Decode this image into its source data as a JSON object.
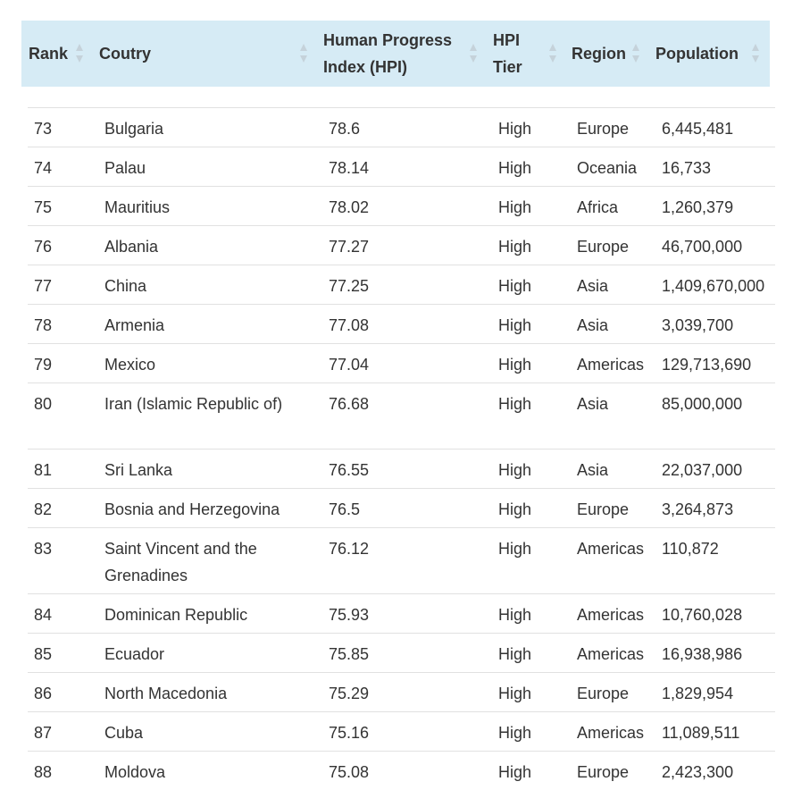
{
  "columns": [
    {
      "key": "rank",
      "label": "Rank"
    },
    {
      "key": "country",
      "label": "Coutry"
    },
    {
      "key": "hpi",
      "label": "Human Progress Index (HPI)"
    },
    {
      "key": "tier",
      "label": "HPI Tier"
    },
    {
      "key": "region",
      "label": "Region"
    },
    {
      "key": "population",
      "label": "Population"
    }
  ],
  "rows": [
    {
      "rank": "73",
      "country": "Bulgaria",
      "hpi": "78.6",
      "tier": "High",
      "region": "Europe",
      "population": "6,445,481"
    },
    {
      "rank": "74",
      "country": "Palau",
      "hpi": "78.14",
      "tier": "High",
      "region": "Oceania",
      "population": "16,733"
    },
    {
      "rank": "75",
      "country": "Mauritius",
      "hpi": "78.02",
      "tier": "High",
      "region": "Africa",
      "population": "1,260,379"
    },
    {
      "rank": "76",
      "country": "Albania",
      "hpi": "77.27",
      "tier": "High",
      "region": "Europe",
      "population": "46,700,000"
    },
    {
      "rank": "77",
      "country": "China",
      "hpi": "77.25",
      "tier": "High",
      "region": "Asia",
      "population": "1,409,670,000"
    },
    {
      "rank": "78",
      "country": "Armenia",
      "hpi": "77.08",
      "tier": "High",
      "region": "Asia",
      "population": "3,039,700"
    },
    {
      "rank": "79",
      "country": "Mexico",
      "hpi": "77.04",
      "tier": "High",
      "region": "Americas",
      "population": "129,713,690"
    },
    {
      "rank": "80",
      "country": "Iran (Islamic Republic of)",
      "hpi": "76.68",
      "tier": "High",
      "region": "Asia",
      "population": "85,000,000"
    },
    {
      "rank": "81",
      "country": "Sri Lanka",
      "hpi": "76.55",
      "tier": "High",
      "region": "Asia",
      "population": "22,037,000"
    },
    {
      "rank": "82",
      "country": "Bosnia and Herzegovina",
      "hpi": "76.5",
      "tier": "High",
      "region": "Europe",
      "population": "3,264,873"
    },
    {
      "rank": "83",
      "country": "Saint Vincent and the Grenadines",
      "hpi": "76.12",
      "tier": "High",
      "region": "Americas",
      "population": "110,872"
    },
    {
      "rank": "84",
      "country": "Dominican Republic",
      "hpi": "75.93",
      "tier": "High",
      "region": "Americas",
      "population": "10,760,028"
    },
    {
      "rank": "85",
      "country": "Ecuador",
      "hpi": "75.85",
      "tier": "High",
      "region": "Americas",
      "population": "16,938,986"
    },
    {
      "rank": "86",
      "country": "North Macedonia",
      "hpi": "75.29",
      "tier": "High",
      "region": "Europe",
      "population": "1,829,954"
    },
    {
      "rank": "87",
      "country": "Cuba",
      "hpi": "75.16",
      "tier": "High",
      "region": "Americas",
      "population": "11,089,511"
    },
    {
      "rank": "88",
      "country": "Moldova",
      "hpi": "75.08",
      "tier": "High",
      "region": "Europe",
      "population": "2,423,300"
    }
  ],
  "colors": {
    "header_bg": "#d6ebf5",
    "text": "#333333",
    "row_border": "#e1e1e1",
    "sort_icon": "#c5d2da"
  },
  "icons": {
    "sort": "sort-icon"
  }
}
